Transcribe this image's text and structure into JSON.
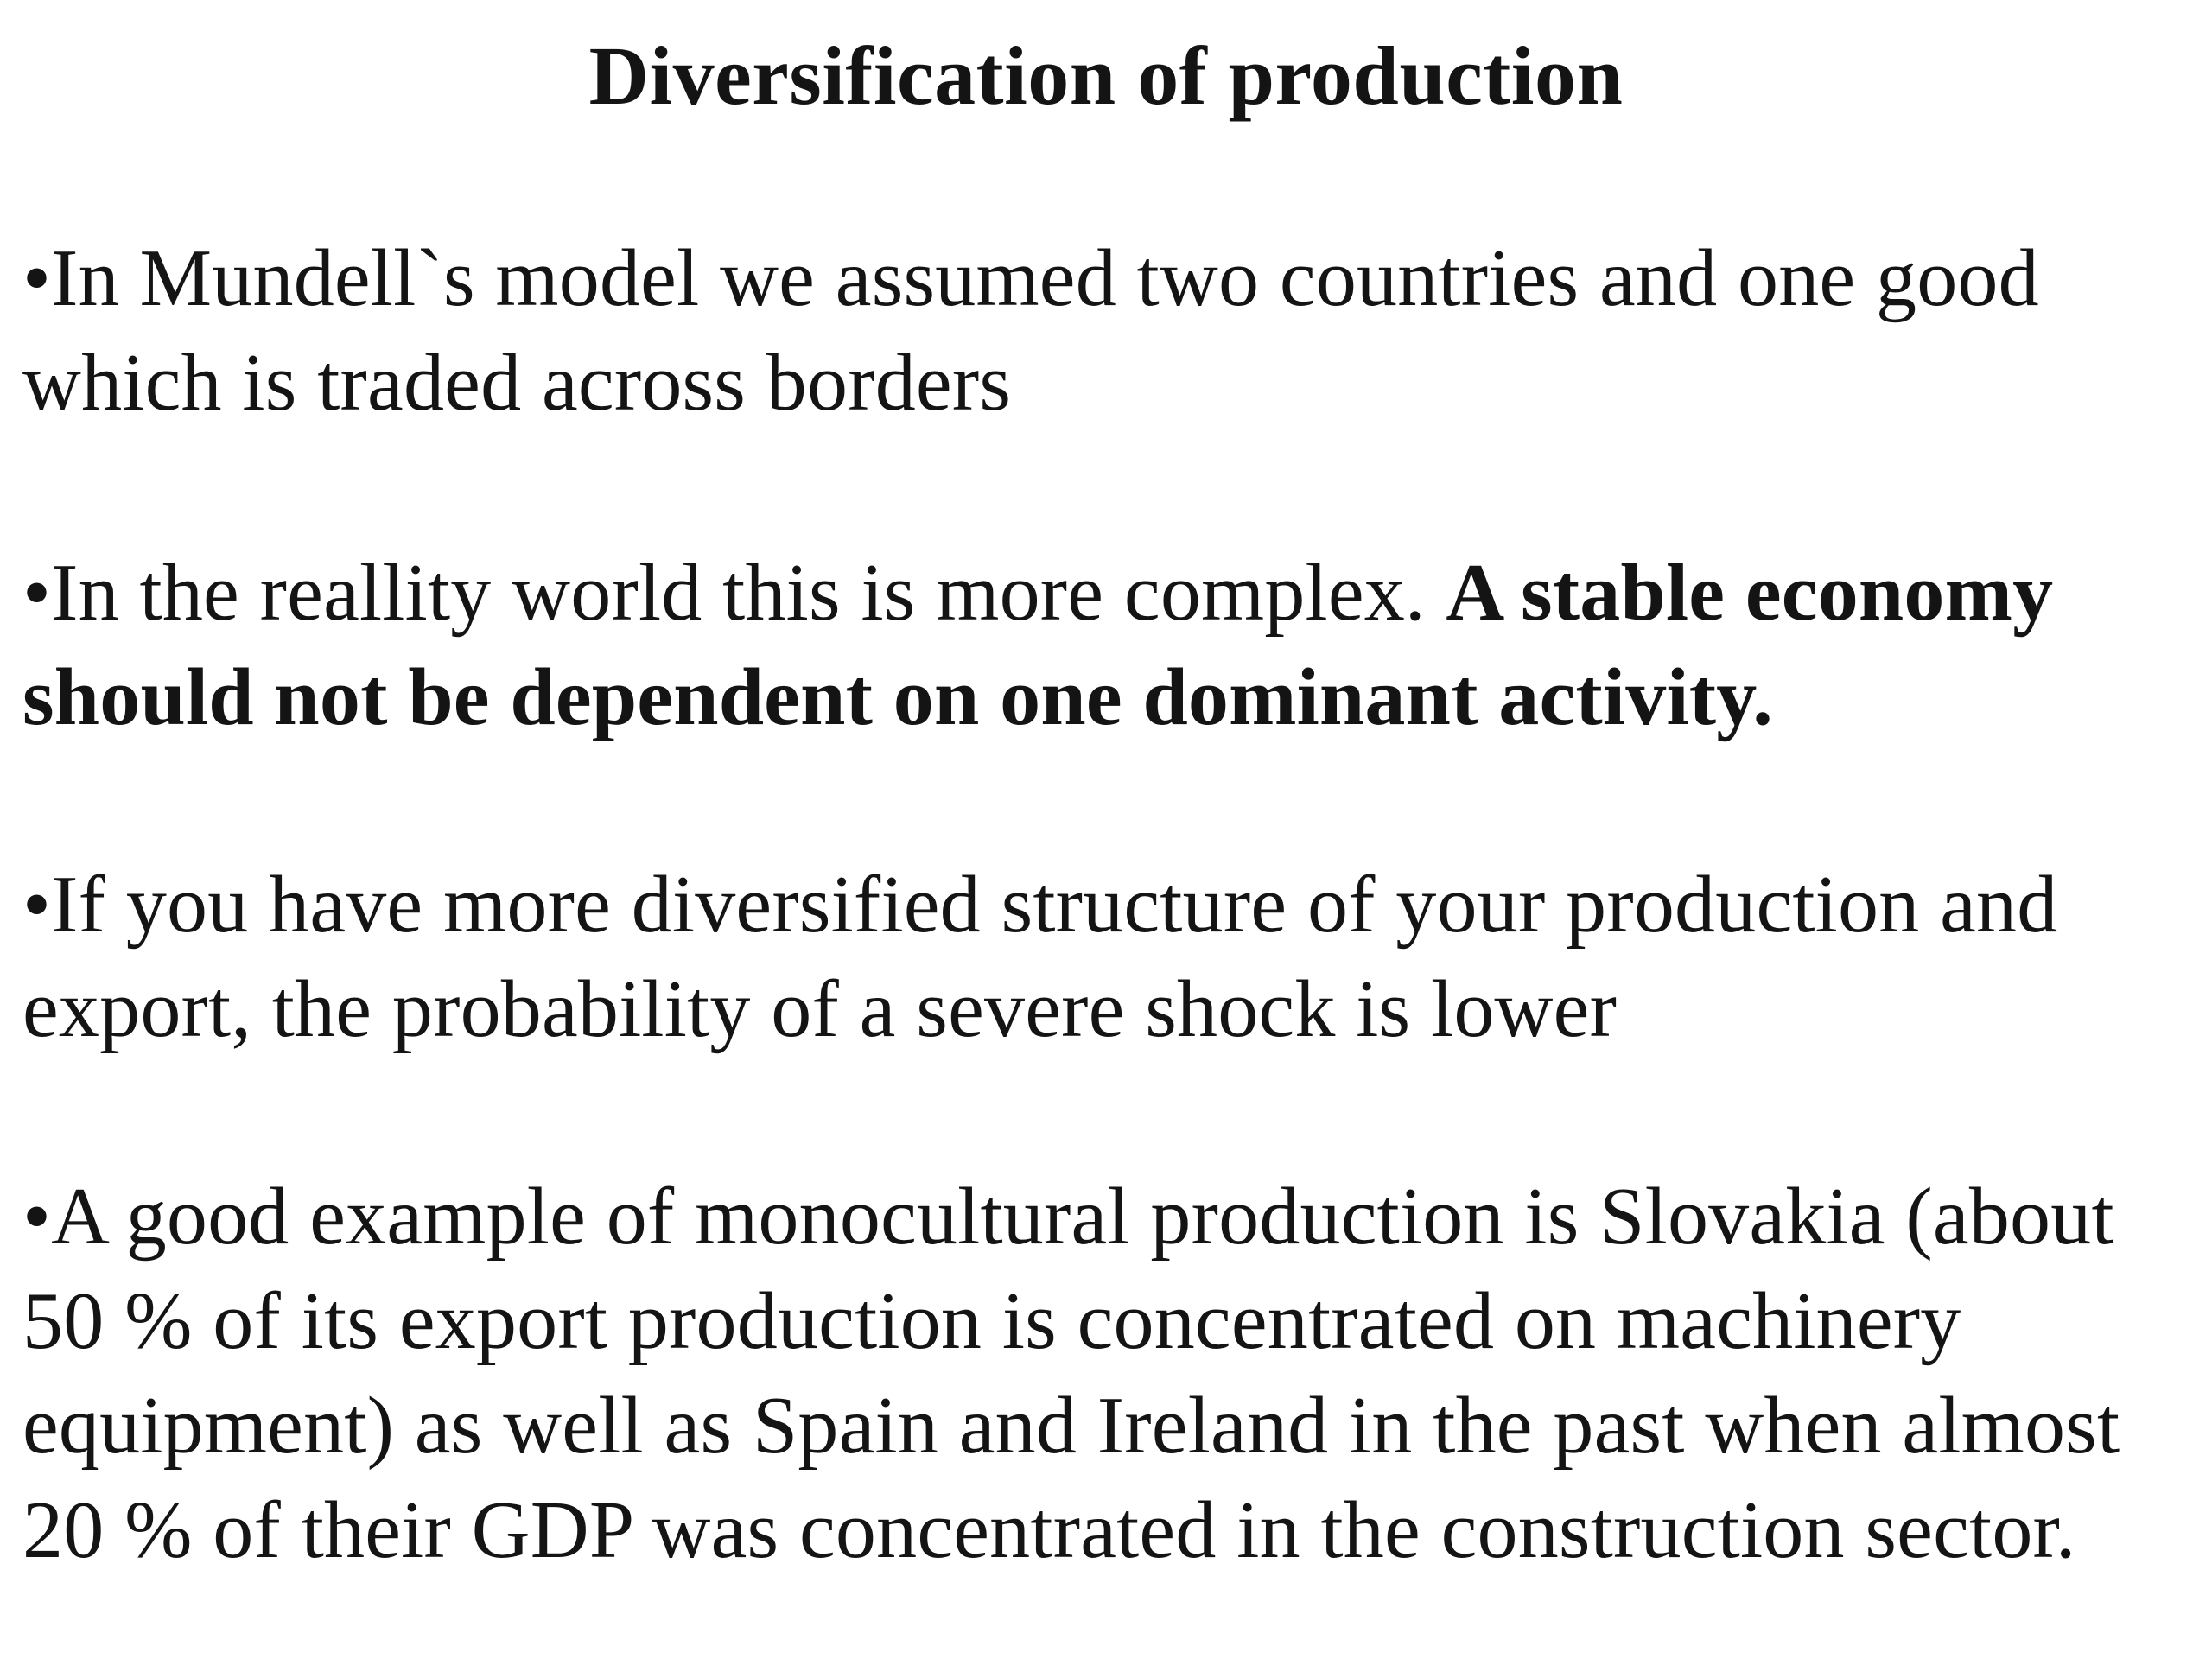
{
  "slide": {
    "title": "Diversification of production",
    "bullet_char": "•",
    "bullets": [
      {
        "text": "In Mundell`s model we assumed two countries and one good which is traded across borders"
      },
      {
        "text": "In the reallity world this is more complex. ",
        "bold_text": "A stable economy should not be dependent on one dominant activity."
      },
      {
        "text": "If you have more diversified structure of your production and export, the probability of a severe shock is lower"
      },
      {
        "text": "A good example of monocultural production is Slovakia (about 50 % of its export production is concentrated on machinery equipment) as well as Spain and Ireland in the past when almost 20 % of their GDP was concentrated in the construction sector."
      }
    ]
  }
}
